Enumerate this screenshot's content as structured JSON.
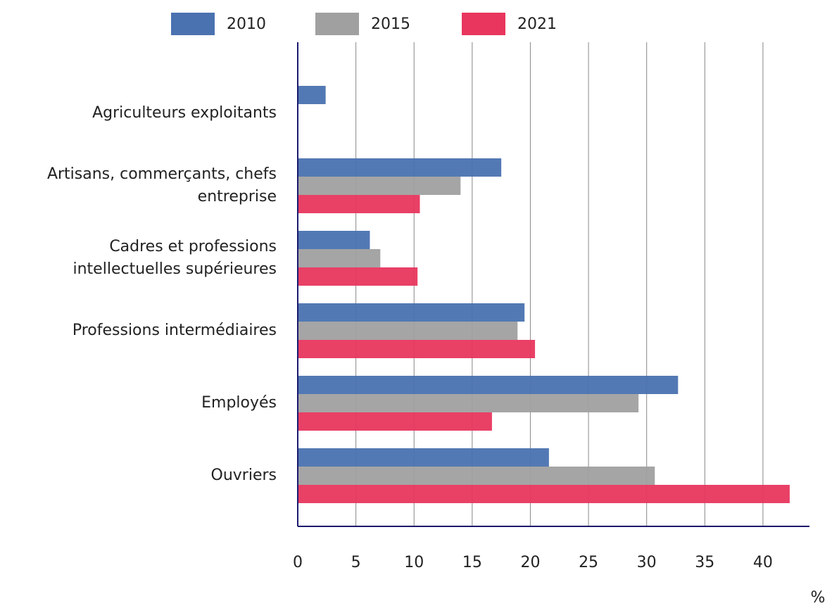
{
  "chart_data": {
    "type": "bar",
    "orientation": "horizontal",
    "categories": [
      "Agriculteurs exploitants",
      "Artisans, commerçants, chefs entreprise",
      "Cadres et professions intellectuelles supérieures",
      "Professions intermédiaires",
      "Employés",
      "Ouvriers"
    ],
    "series": [
      {
        "name": "2010",
        "color": "#4a72b0",
        "values": [
          2.4,
          17.5,
          6.2,
          19.5,
          32.7,
          21.6
        ]
      },
      {
        "name": "2015",
        "color": "#a0a0a0",
        "values": [
          null,
          14.0,
          7.1,
          18.9,
          29.3,
          30.7
        ]
      },
      {
        "name": "2021",
        "color": "#e8365e",
        "values": [
          null,
          10.5,
          10.3,
          20.4,
          16.7,
          42.3
        ]
      }
    ],
    "x_label": "%",
    "xlim": [
      0,
      44
    ],
    "xticks": [
      0,
      5,
      10,
      15,
      20,
      25,
      30,
      35,
      40
    ],
    "grid": true,
    "legend": "top"
  }
}
